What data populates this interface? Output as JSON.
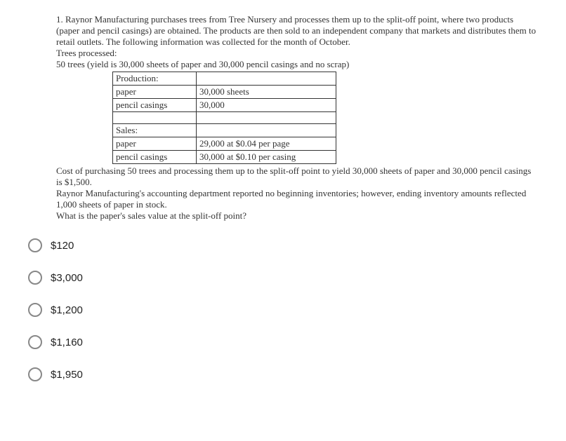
{
  "question": {
    "number": "1.",
    "para1": "Raynor Manufacturing purchases trees from Tree Nursery and processes them up to the split-off point, where two products (paper and pencil casings) are obtained. The products are then sold to an independent company that markets and distributes them to retail outlets. The following information was collected for the month of October.",
    "trees_processed": "Trees processed:",
    "trees_yield": "50 trees (yield is 30,000 sheets of paper and 30,000 pencil casings and no scrap)",
    "table": {
      "r1c1": "Production:",
      "r1c2": "",
      "r2c1": "paper",
      "r2c2": "30,000 sheets",
      "r3c1": "pencil casings",
      "r3c2": "30,000",
      "r5c1": "Sales:",
      "r5c2": "",
      "r6c1": "paper",
      "r6c2": "29,000 at $0.04 per page",
      "r7c1": "pencil casings",
      "r7c2": "30,000 at $0.10 per casing"
    },
    "post1": "Cost of purchasing 50 trees and processing them up to the split-off point to yield 30,000 sheets of paper and 30,000 pencil casings is $1,500.",
    "post2": "Raynor Manufacturing's accounting department reported no beginning inventories; however, ending inventory amounts reflected 1,000 sheets of paper in stock.",
    "post3": "What is the paper's sales value at the split-off point?"
  },
  "options": [
    "$120",
    "$3,000",
    "$1,200",
    "$1,160",
    "$1,950"
  ]
}
